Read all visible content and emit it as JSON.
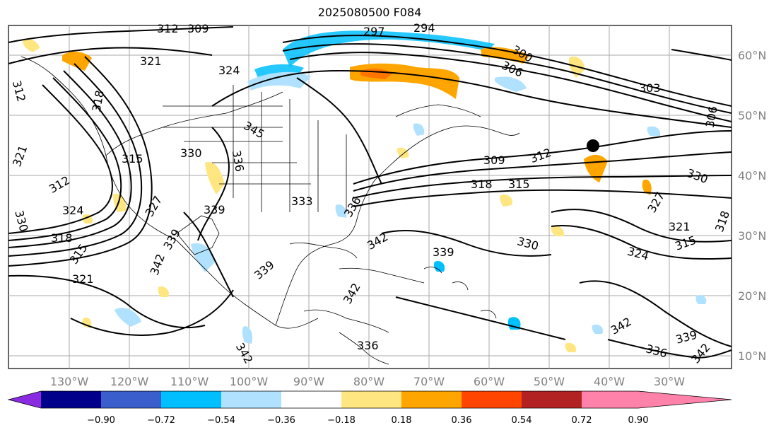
{
  "title": "2025080500 F084",
  "latitude_labels": [
    "60°N",
    "50°N",
    "40°N",
    "30°N",
    "20°N",
    "10°N"
  ],
  "longitude_labels": [
    "130°W",
    "120°W",
    "110°W",
    "100°W",
    "90°W",
    "80°W",
    "70°W",
    "60°W",
    "50°W",
    "40°W",
    "30°W"
  ],
  "colorbar": {
    "ticks": [
      "−0.90",
      "−0.72",
      "−0.54",
      "−0.36",
      "−0.18",
      "0.18",
      "0.36",
      "0.54",
      "0.72",
      "0.90"
    ],
    "colors": [
      "#8a2be2",
      "#00008b",
      "#3a5fcd",
      "#00bfff",
      "#b0e2ff",
      "#ffffff",
      "#ffe680",
      "#ffa500",
      "#ff4500",
      "#b22222",
      "#ff82ab"
    ]
  },
  "contour_labels": [
    "321",
    "324",
    "312",
    "318",
    "321",
    "315",
    "330",
    "336",
    "339",
    "345",
    "312",
    "324",
    "330",
    "318",
    "315",
    "321",
    "327",
    "339",
    "342",
    "333",
    "336",
    "342",
    "336",
    "342",
    "339",
    "330",
    "309",
    "312",
    "318",
    "315",
    "303",
    "306",
    "300",
    "306",
    "330",
    "327",
    "321",
    "315",
    "324",
    "318",
    "339",
    "342",
    "336",
    "342",
    "339",
    "342",
    "297",
    "294",
    "309",
    "312"
  ]
}
